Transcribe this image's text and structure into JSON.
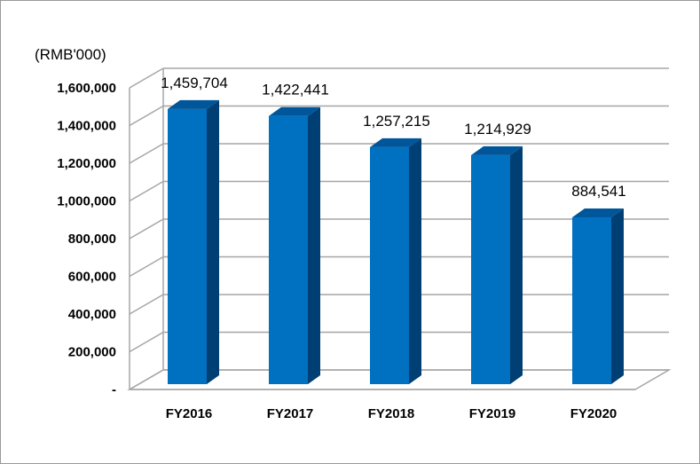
{
  "chart_data": {
    "type": "bar",
    "unit_label": "(RMB'000)",
    "categories": [
      "FY2016",
      "FY2017",
      "FY2018",
      "FY2019",
      "FY2020"
    ],
    "values": [
      1459704,
      1422441,
      1257215,
      1214929,
      884541
    ],
    "value_labels": [
      "1,459,704",
      "1,422,441",
      "1,257,215",
      "1,214,929",
      "884,541"
    ],
    "y_ticks": [
      0,
      200000,
      400000,
      600000,
      800000,
      1000000,
      1200000,
      1400000,
      1600000
    ],
    "y_tick_labels": [
      "-",
      "200,000",
      "400,000",
      "600,000",
      "800,000",
      "1,000,000",
      "1,200,000",
      "1,400,000",
      "1,600,000"
    ],
    "ylim": [
      0,
      1600000
    ],
    "grid": true,
    "legend": "none",
    "colors": {
      "bar_front": "#0070C0",
      "bar_side": "#003F73",
      "bar_top": "#00569A",
      "gridline": "#a6a6a6"
    }
  }
}
